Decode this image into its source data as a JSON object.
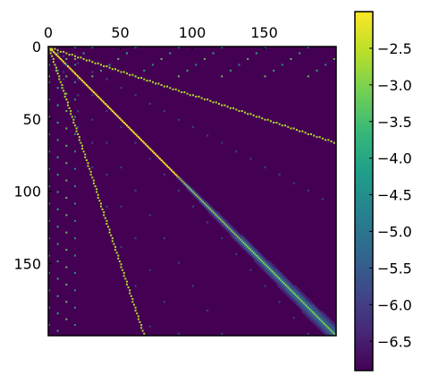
{
  "chart_data": [
    {
      "type": "heatmap",
      "title": "",
      "xlabel": "",
      "ylabel": "",
      "matrix_size": 200,
      "xlim": [
        0,
        200
      ],
      "ylim": [
        200,
        0
      ],
      "x_ticks": [
        0,
        50,
        100,
        150
      ],
      "x_tick_labels": [
        "0",
        "50",
        "100",
        "150"
      ],
      "y_ticks": [
        0,
        50,
        100,
        150
      ],
      "y_tick_labels": [
        "0",
        "50",
        "100",
        "150"
      ],
      "x_axis_position": "top",
      "grid": false,
      "colormap": "viridis",
      "value_range": [
        -6.9,
        -2.0
      ],
      "background_value": -6.9,
      "features": [
        {
          "kind": "main-diagonal",
          "from": [
            0,
            0
          ],
          "to": [
            199,
            199
          ],
          "value": -2.0
        },
        {
          "kind": "diagonal-band-glow",
          "from_row": 90,
          "to_row": 199,
          "value": -4.5
        },
        {
          "kind": "upper-stripe",
          "from": [
            0,
            0
          ],
          "to": [
            199,
            66
          ],
          "value": -2.6
        },
        {
          "kind": "lower-stripe",
          "from": [
            0,
            0
          ],
          "to": [
            66,
            199
          ],
          "value": -2.6
        },
        {
          "kind": "sparse-lattice-dots",
          "region": "near-axes",
          "value": -4.0
        }
      ]
    },
    {
      "type": "colorbar",
      "range": [
        -6.9,
        -2.0
      ],
      "ticks": [
        -2.5,
        -3.0,
        -3.5,
        -4.0,
        -4.5,
        -5.0,
        -5.5,
        -6.0,
        -6.5
      ],
      "tick_labels": [
        "−2.5",
        "−3.0",
        "−3.5",
        "−4.0",
        "−4.5",
        "−5.0",
        "−5.5",
        "−6.0",
        "−6.5"
      ],
      "colors": [
        "#440154",
        "#482878",
        "#3e4989",
        "#31688e",
        "#26828e",
        "#1f9e89",
        "#35b779",
        "#6ece58",
        "#b5de2b",
        "#fde725"
      ]
    }
  ]
}
